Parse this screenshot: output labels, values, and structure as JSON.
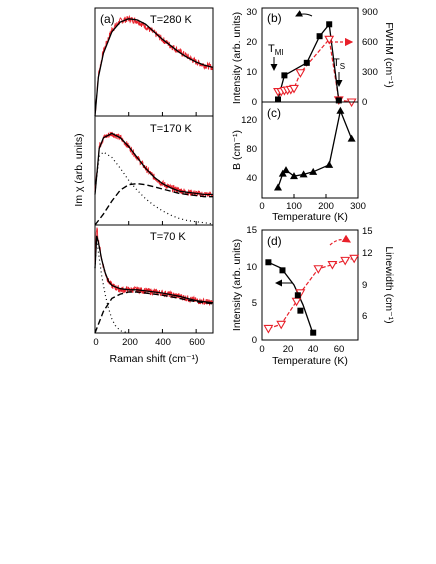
{
  "figure": {
    "panel_a": {
      "label": "(a)",
      "ylabel": "Im χ (arb. units)",
      "xlabel": "Raman shift (cm⁻¹)",
      "x_ticks": [
        "0",
        "200",
        "400",
        "600"
      ],
      "subpanels": [
        {
          "temp_label": "T=280 K"
        },
        {
          "temp_label": "T=170 K"
        },
        {
          "temp_label": "T=70 K"
        }
      ]
    },
    "panel_b": {
      "label": "(b)",
      "ylabel": "Intensity (arb. units)",
      "y2label": "FWHM (cm⁻¹)",
      "ann_tmi": "T",
      "ann_tmi_sub": "MI",
      "ann_ts": "T",
      "ann_ts_sub": "S",
      "y_ticks": [
        "0",
        "10",
        "20",
        "30"
      ],
      "y2_ticks": [
        "0",
        "300",
        "600",
        "900"
      ]
    },
    "panel_c": {
      "label": "(c)",
      "ylabel": "B (cm⁻¹)",
      "xlabel": "Temperature (K)",
      "x_ticks": [
        "0",
        "100",
        "200",
        "300"
      ],
      "y_ticks": [
        "40",
        "80",
        "120"
      ]
    },
    "panel_d": {
      "label": "(d)",
      "ylabel": "Intensity (arb. units)",
      "y2label": "Linewidth (cm⁻¹)",
      "xlabel": "Temperature (K)",
      "x_ticks": [
        "0",
        "20",
        "40",
        "60"
      ],
      "y_ticks": [
        "0",
        "5",
        "10",
        "15"
      ],
      "y2_ticks": [
        "6",
        "9",
        "12",
        "15"
      ]
    }
  },
  "colors": {
    "data_red": "#e8202a",
    "fit_black": "#000000",
    "marker_black": "#000000"
  },
  "chart_data": [
    {
      "type": "line",
      "panel": "(a) T=280 K",
      "xlabel": "Raman shift (cm⁻¹)",
      "ylabel": "Im χ (arb. units)",
      "xlim": [
        0,
        700
      ],
      "ylim": [
        0,
        1.0
      ],
      "series": [
        {
          "name": "data",
          "x": [
            0,
            20,
            50,
            100,
            150,
            200,
            250,
            300,
            350,
            400,
            450,
            500,
            550,
            600,
            650,
            700
          ],
          "y": [
            0.0,
            0.38,
            0.6,
            0.8,
            0.88,
            0.9,
            0.88,
            0.83,
            0.77,
            0.71,
            0.65,
            0.6,
            0.55,
            0.5,
            0.47,
            0.45
          ]
        },
        {
          "name": "fit",
          "x": [
            0,
            20,
            50,
            100,
            150,
            200,
            250,
            300,
            350,
            400,
            450,
            500,
            550,
            600,
            650,
            700
          ],
          "y": [
            0.0,
            0.36,
            0.58,
            0.78,
            0.87,
            0.9,
            0.89,
            0.85,
            0.78,
            0.71,
            0.65,
            0.59,
            0.54,
            0.5,
            0.47,
            0.45
          ]
        }
      ]
    },
    {
      "type": "line",
      "panel": "(a) T=170 K",
      "xlim": [
        0,
        700
      ],
      "ylim": [
        0,
        1.0
      ],
      "series": [
        {
          "name": "data",
          "x": [
            0,
            25,
            50,
            100,
            150,
            200,
            250,
            300,
            350,
            400,
            450,
            500,
            550,
            600,
            650,
            700
          ],
          "y": [
            0.3,
            0.72,
            0.8,
            0.84,
            0.8,
            0.72,
            0.62,
            0.52,
            0.44,
            0.38,
            0.34,
            0.32,
            0.3,
            0.29,
            0.28,
            0.28
          ]
        },
        {
          "name": "fit",
          "x": [
            0,
            25,
            50,
            100,
            150,
            200,
            250,
            300,
            350,
            400,
            450,
            500,
            550,
            600,
            650,
            700
          ],
          "y": [
            0.28,
            0.7,
            0.8,
            0.84,
            0.8,
            0.72,
            0.62,
            0.52,
            0.44,
            0.38,
            0.34,
            0.31,
            0.3,
            0.29,
            0.28,
            0.28
          ]
        },
        {
          "name": "dotted component",
          "x": [
            0,
            25,
            50,
            100,
            150,
            200,
            250,
            300,
            350,
            400,
            450,
            500,
            550,
            600,
            650,
            700
          ],
          "y": [
            0.3,
            0.63,
            0.67,
            0.62,
            0.52,
            0.41,
            0.32,
            0.24,
            0.18,
            0.13,
            0.09,
            0.06,
            0.04,
            0.03,
            0.02,
            0.01
          ]
        },
        {
          "name": "dashed component",
          "x": [
            0,
            50,
            100,
            150,
            200,
            250,
            300,
            350,
            400,
            450,
            500,
            550,
            600,
            650,
            700
          ],
          "y": [
            0.0,
            0.1,
            0.22,
            0.32,
            0.37,
            0.38,
            0.37,
            0.35,
            0.33,
            0.31,
            0.29,
            0.28,
            0.27,
            0.26,
            0.26
          ]
        }
      ]
    },
    {
      "type": "line",
      "panel": "(a) T=70 K",
      "xlim": [
        0,
        700
      ],
      "ylim": [
        0,
        1.0
      ],
      "series": [
        {
          "name": "data",
          "x": [
            0,
            10,
            20,
            40,
            60,
            80,
            100,
            150,
            200,
            250,
            300,
            400,
            500,
            600,
            700
          ],
          "y": [
            0.62,
            0.98,
            0.86,
            0.68,
            0.56,
            0.48,
            0.44,
            0.4,
            0.4,
            0.4,
            0.39,
            0.37,
            0.34,
            0.3,
            0.28
          ]
        },
        {
          "name": "fit",
          "x": [
            0,
            10,
            20,
            40,
            60,
            80,
            100,
            150,
            200,
            250,
            300,
            400,
            500,
            600,
            700
          ],
          "y": [
            0.6,
            0.9,
            0.84,
            0.68,
            0.56,
            0.48,
            0.44,
            0.41,
            0.4,
            0.4,
            0.39,
            0.37,
            0.34,
            0.3,
            0.28
          ]
        },
        {
          "name": "dotted component",
          "x": [
            0,
            10,
            20,
            40,
            60,
            80,
            100,
            120,
            150,
            200
          ],
          "y": [
            0.6,
            0.88,
            0.75,
            0.53,
            0.36,
            0.23,
            0.13,
            0.07,
            0.02,
            0.0
          ]
        },
        {
          "name": "dashed component",
          "x": [
            0,
            50,
            100,
            150,
            200,
            250,
            300,
            400,
            500,
            600,
            700
          ],
          "y": [
            0.0,
            0.2,
            0.32,
            0.36,
            0.38,
            0.38,
            0.37,
            0.35,
            0.32,
            0.29,
            0.27
          ]
        }
      ]
    },
    {
      "type": "line",
      "panel": "(b)",
      "xlabel": "Temperature (K)",
      "ylabel": "Intensity (arb. units)",
      "y2label": "FWHM (cm⁻¹)",
      "xlim": [
        0,
        300
      ],
      "ylim": [
        0,
        30
      ],
      "y2lim": [
        0,
        900
      ],
      "series": [
        {
          "name": "Intensity",
          "axis": "left",
          "marker": "filled square",
          "x": [
            50,
            70,
            140,
            180,
            210,
            240
          ],
          "y": [
            0.8,
            8.5,
            12.5,
            21,
            24.8,
            0.5
          ]
        },
        {
          "name": "FWHM",
          "axis": "right",
          "marker": "open triangle",
          "x": [
            50,
            60,
            70,
            80,
            90,
            100,
            120,
            210,
            240,
            280
          ],
          "y": [
            100,
            100,
            110,
            115,
            120,
            130,
            280,
            600,
            20,
            0
          ]
        }
      ]
    },
    {
      "type": "line",
      "panel": "(c)",
      "xlabel": "Temperature (K)",
      "ylabel": "B (cm⁻¹)",
      "xlim": [
        0,
        300
      ],
      "ylim": [
        20,
        130
      ],
      "series": [
        {
          "name": "B",
          "marker": "filled triangle",
          "x": [
            50,
            65,
            75,
            100,
            130,
            160,
            210,
            245,
            280
          ],
          "y": [
            32,
            48,
            52,
            45,
            47,
            50,
            58,
            120,
            88
          ]
        }
      ]
    },
    {
      "type": "line",
      "panel": "(d)",
      "xlabel": "Temperature (K)",
      "ylabel": "Intensity (arb. units)",
      "y2label": "Linewidth (cm⁻¹)",
      "xlim": [
        0,
        75
      ],
      "ylim": [
        0,
        15
      ],
      "y2lim": [
        4.5,
        15
      ],
      "series": [
        {
          "name": "Intensity",
          "axis": "left",
          "marker": "filled square",
          "x": [
            5,
            16,
            28,
            30,
            40
          ],
          "y": [
            10.6,
            9.5,
            6.1,
            4.0,
            1.0
          ]
        },
        {
          "name": "Linewidth",
          "axis": "right",
          "marker": "open triangle",
          "x": [
            5,
            15,
            27,
            30,
            44,
            55,
            65,
            72
          ],
          "y": [
            5.6,
            6.0,
            8.2,
            9.0,
            11.3,
            11.7,
            12.1,
            12.3
          ]
        }
      ]
    }
  ]
}
